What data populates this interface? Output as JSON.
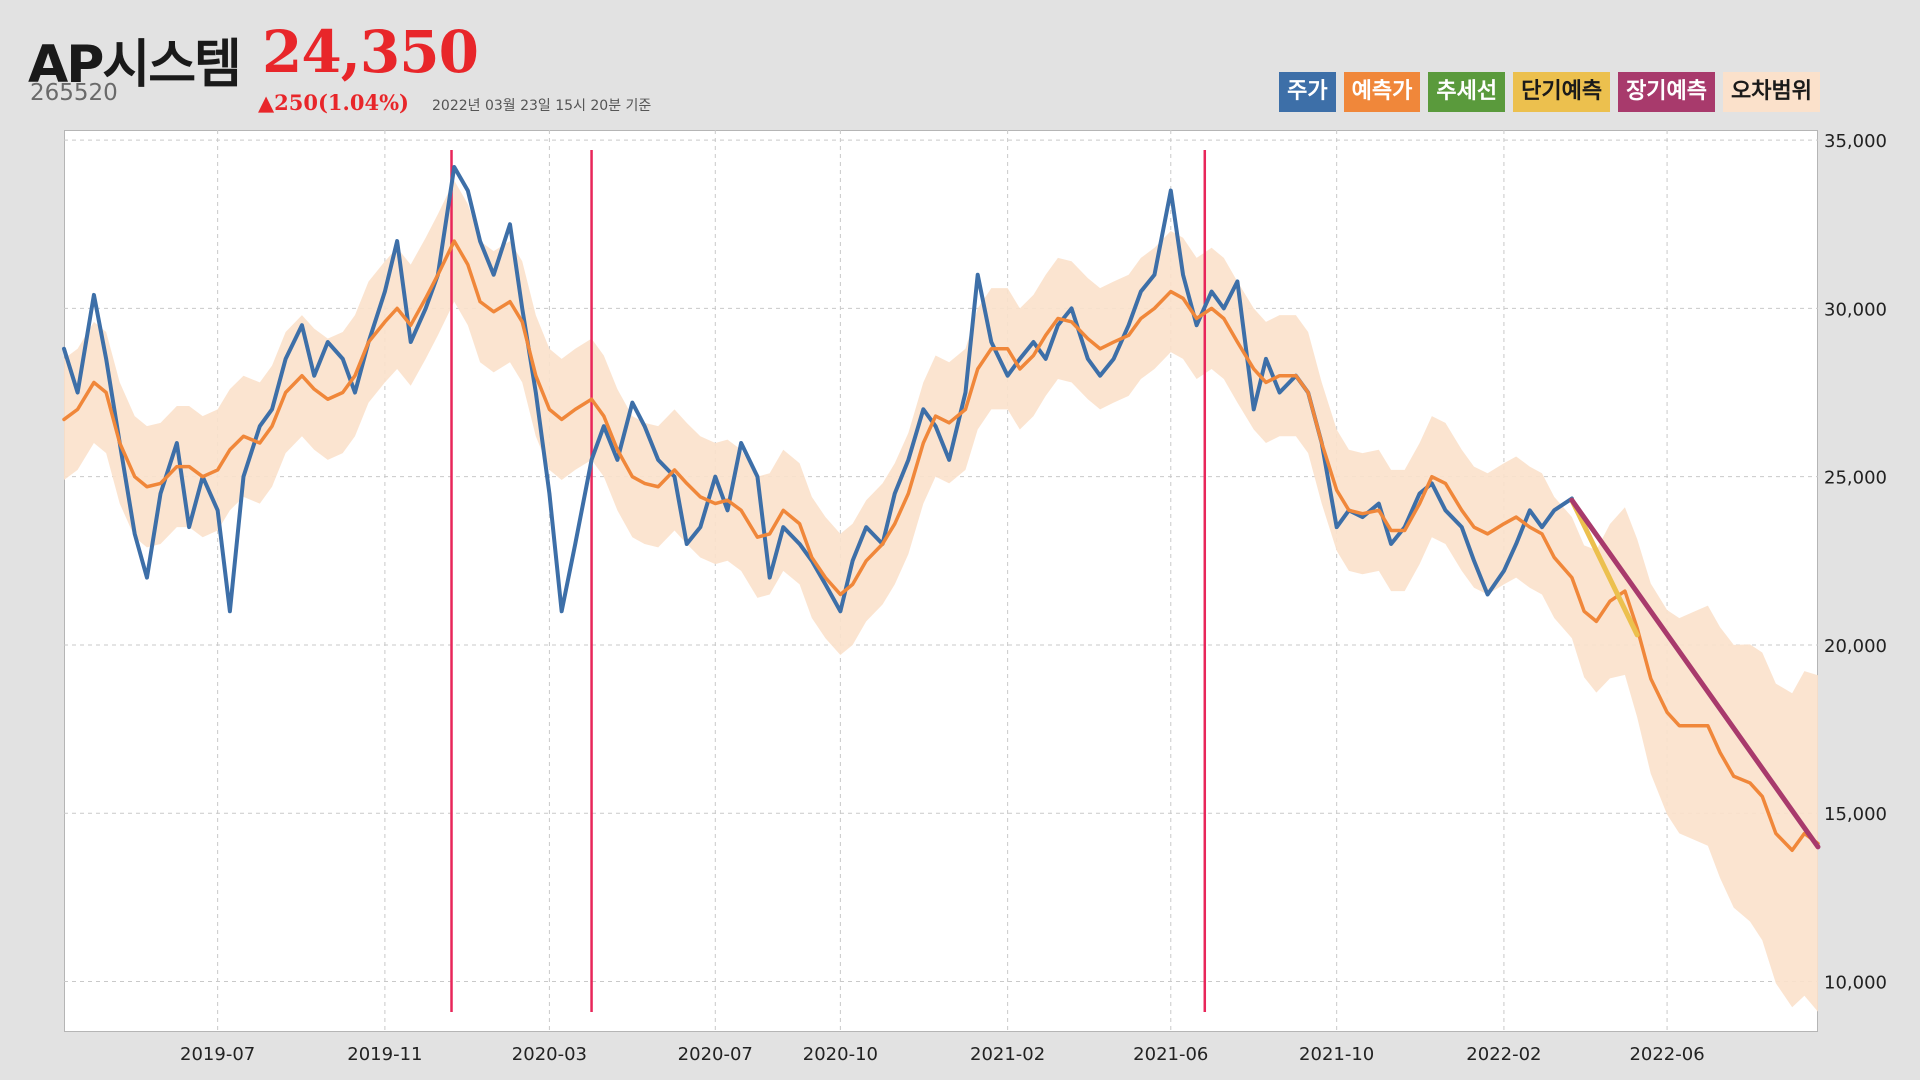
{
  "header": {
    "name": "AP시스템",
    "price": "24,350",
    "code": "265520",
    "change": "▲250(1.04%)",
    "timestamp": "2022년 03월 23일 15시 20분 기준"
  },
  "legend": [
    {
      "label": "주가",
      "color": "#3d6fa8",
      "text_color": "#ffffff"
    },
    {
      "label": "예측가",
      "color": "#f0873a",
      "text_color": "#ffffff"
    },
    {
      "label": "추세선",
      "color": "#5a9a3c",
      "text_color": "#ffffff"
    },
    {
      "label": "단기예측",
      "color": "#ecc04e",
      "text_color": "#1a1a1a"
    },
    {
      "label": "장기예측",
      "color": "#a83a6c",
      "text_color": "#ffffff"
    },
    {
      "label": "오차범위",
      "color": "#fbe1cb",
      "text_color": "#1a1a1a"
    }
  ],
  "chart_data": {
    "type": "line",
    "x_ticks": [
      "2019-07",
      "2019-11",
      "2020-03",
      "2020-07",
      "2020-10",
      "2021-02",
      "2021-06",
      "2021-10",
      "2022-02",
      "2022-06"
    ],
    "x_range": [
      "2019-03-10",
      "2022-09-20"
    ],
    "y_ticks": [
      "10,000",
      "15,000",
      "20,000",
      "25,000",
      "30,000",
      "35,000"
    ],
    "ylim": [
      8500,
      35300
    ],
    "grid": true,
    "y_axis_side": "right",
    "vertical_markers": [
      "2019-12-20",
      "2020-04-01",
      "2021-06-26"
    ],
    "series": [
      {
        "name": "주가",
        "color": "#3d6fa8",
        "points": [
          [
            "2019-03-10",
            28800
          ],
          [
            "2019-03-20",
            27500
          ],
          [
            "2019-04-01",
            30400
          ],
          [
            "2019-04-10",
            28500
          ],
          [
            "2019-04-20",
            26000
          ],
          [
            "2019-05-01",
            23300
          ],
          [
            "2019-05-10",
            22000
          ],
          [
            "2019-05-20",
            24500
          ],
          [
            "2019-06-01",
            26000
          ],
          [
            "2019-06-10",
            23500
          ],
          [
            "2019-06-20",
            25000
          ],
          [
            "2019-07-01",
            24000
          ],
          [
            "2019-07-10",
            21000
          ],
          [
            "2019-07-20",
            25000
          ],
          [
            "2019-08-01",
            26500
          ],
          [
            "2019-08-10",
            27000
          ],
          [
            "2019-08-20",
            28500
          ],
          [
            "2019-09-01",
            29500
          ],
          [
            "2019-09-10",
            28000
          ],
          [
            "2019-09-20",
            29000
          ],
          [
            "2019-10-01",
            28500
          ],
          [
            "2019-10-10",
            27500
          ],
          [
            "2019-10-20",
            29000
          ],
          [
            "2019-11-01",
            30500
          ],
          [
            "2019-11-10",
            32000
          ],
          [
            "2019-11-20",
            29000
          ],
          [
            "2019-12-01",
            30000
          ],
          [
            "2019-12-10",
            31000
          ],
          [
            "2019-12-22",
            34200
          ],
          [
            "2020-01-01",
            33500
          ],
          [
            "2020-01-10",
            32000
          ],
          [
            "2020-01-20",
            31000
          ],
          [
            "2020-02-01",
            32500
          ],
          [
            "2020-02-10",
            30000
          ],
          [
            "2020-02-20",
            27500
          ],
          [
            "2020-03-01",
            24500
          ],
          [
            "2020-03-10",
            21000
          ],
          [
            "2020-03-20",
            23000
          ],
          [
            "2020-04-01",
            25500
          ],
          [
            "2020-04-10",
            26500
          ],
          [
            "2020-04-20",
            25500
          ],
          [
            "2020-05-01",
            27200
          ],
          [
            "2020-05-10",
            26500
          ],
          [
            "2020-05-20",
            25500
          ],
          [
            "2020-06-01",
            25000
          ],
          [
            "2020-06-10",
            23000
          ],
          [
            "2020-06-20",
            23500
          ],
          [
            "2020-07-01",
            25000
          ],
          [
            "2020-07-10",
            24000
          ],
          [
            "2020-07-20",
            26000
          ],
          [
            "2020-08-01",
            25000
          ],
          [
            "2020-08-10",
            22000
          ],
          [
            "2020-08-20",
            23500
          ],
          [
            "2020-09-01",
            23000
          ],
          [
            "2020-09-10",
            22500
          ],
          [
            "2020-09-20",
            21800
          ],
          [
            "2020-10-01",
            21000
          ],
          [
            "2020-10-10",
            22500
          ],
          [
            "2020-10-20",
            23500
          ],
          [
            "2020-11-01",
            23000
          ],
          [
            "2020-11-10",
            24500
          ],
          [
            "2020-11-20",
            25500
          ],
          [
            "2020-12-01",
            27000
          ],
          [
            "2020-12-10",
            26500
          ],
          [
            "2020-12-20",
            25500
          ],
          [
            "2021-01-01",
            27500
          ],
          [
            "2021-01-10",
            31000
          ],
          [
            "2021-01-20",
            29000
          ],
          [
            "2021-02-01",
            28000
          ],
          [
            "2021-02-10",
            28500
          ],
          [
            "2021-02-20",
            29000
          ],
          [
            "2021-03-01",
            28500
          ],
          [
            "2021-03-10",
            29500
          ],
          [
            "2021-03-20",
            30000
          ],
          [
            "2021-04-01",
            28500
          ],
          [
            "2021-04-10",
            28000
          ],
          [
            "2021-04-20",
            28500
          ],
          [
            "2021-05-01",
            29500
          ],
          [
            "2021-05-10",
            30500
          ],
          [
            "2021-05-20",
            31000
          ],
          [
            "2021-06-01",
            33500
          ],
          [
            "2021-06-10",
            31000
          ],
          [
            "2021-06-20",
            29500
          ],
          [
            "2021-07-01",
            30500
          ],
          [
            "2021-07-10",
            30000
          ],
          [
            "2021-07-20",
            30800
          ],
          [
            "2021-08-01",
            27000
          ],
          [
            "2021-08-10",
            28500
          ],
          [
            "2021-08-20",
            27500
          ],
          [
            "2021-09-01",
            28000
          ],
          [
            "2021-09-10",
            27500
          ],
          [
            "2021-09-20",
            26000
          ],
          [
            "2021-10-01",
            23500
          ],
          [
            "2021-10-10",
            24000
          ],
          [
            "2021-10-20",
            23800
          ],
          [
            "2021-11-01",
            24200
          ],
          [
            "2021-11-10",
            23000
          ],
          [
            "2021-11-20",
            23500
          ],
          [
            "2021-12-01",
            24500
          ],
          [
            "2021-12-10",
            24800
          ],
          [
            "2021-12-20",
            24000
          ],
          [
            "2022-01-01",
            23500
          ],
          [
            "2022-01-10",
            22500
          ],
          [
            "2022-01-20",
            21500
          ],
          [
            "2022-02-01",
            22200
          ],
          [
            "2022-02-10",
            23000
          ],
          [
            "2022-02-20",
            24000
          ],
          [
            "2022-03-01",
            23500
          ],
          [
            "2022-03-10",
            24000
          ],
          [
            "2022-03-23",
            24350
          ]
        ]
      },
      {
        "name": "예측가",
        "color": "#f0873a",
        "points": [
          [
            "2019-03-10",
            26700
          ],
          [
            "2019-03-20",
            27000
          ],
          [
            "2019-04-01",
            27800
          ],
          [
            "2019-04-10",
            27500
          ],
          [
            "2019-04-20",
            26000
          ],
          [
            "2019-05-01",
            25000
          ],
          [
            "2019-05-10",
            24700
          ],
          [
            "2019-05-20",
            24800
          ],
          [
            "2019-06-01",
            25300
          ],
          [
            "2019-06-10",
            25300
          ],
          [
            "2019-06-20",
            25000
          ],
          [
            "2019-07-01",
            25200
          ],
          [
            "2019-07-10",
            25800
          ],
          [
            "2019-07-20",
            26200
          ],
          [
            "2019-08-01",
            26000
          ],
          [
            "2019-08-10",
            26500
          ],
          [
            "2019-08-20",
            27500
          ],
          [
            "2019-09-01",
            28000
          ],
          [
            "2019-09-10",
            27600
          ],
          [
            "2019-09-20",
            27300
          ],
          [
            "2019-10-01",
            27500
          ],
          [
            "2019-10-10",
            28000
          ],
          [
            "2019-10-20",
            29000
          ],
          [
            "2019-11-01",
            29600
          ],
          [
            "2019-11-10",
            30000
          ],
          [
            "2019-11-20",
            29500
          ],
          [
            "2019-12-01",
            30300
          ],
          [
            "2019-12-10",
            31000
          ],
          [
            "2019-12-22",
            32000
          ],
          [
            "2020-01-01",
            31300
          ],
          [
            "2020-01-10",
            30200
          ],
          [
            "2020-01-20",
            29900
          ],
          [
            "2020-02-01",
            30200
          ],
          [
            "2020-02-10",
            29600
          ],
          [
            "2020-02-20",
            28000
          ],
          [
            "2020-03-01",
            27000
          ],
          [
            "2020-03-10",
            26700
          ],
          [
            "2020-03-20",
            27000
          ],
          [
            "2020-04-01",
            27300
          ],
          [
            "2020-04-10",
            26800
          ],
          [
            "2020-04-20",
            25800
          ],
          [
            "2020-05-01",
            25000
          ],
          [
            "2020-05-10",
            24800
          ],
          [
            "2020-05-20",
            24700
          ],
          [
            "2020-06-01",
            25200
          ],
          [
            "2020-06-10",
            24800
          ],
          [
            "2020-06-20",
            24400
          ],
          [
            "2020-07-01",
            24200
          ],
          [
            "2020-07-10",
            24300
          ],
          [
            "2020-07-20",
            24000
          ],
          [
            "2020-08-01",
            23200
          ],
          [
            "2020-08-10",
            23300
          ],
          [
            "2020-08-20",
            24000
          ],
          [
            "2020-09-01",
            23600
          ],
          [
            "2020-09-10",
            22600
          ],
          [
            "2020-09-20",
            22000
          ],
          [
            "2020-10-01",
            21500
          ],
          [
            "2020-10-10",
            21800
          ],
          [
            "2020-10-20",
            22500
          ],
          [
            "2020-11-01",
            23000
          ],
          [
            "2020-11-10",
            23600
          ],
          [
            "2020-11-20",
            24500
          ],
          [
            "2020-12-01",
            26000
          ],
          [
            "2020-12-10",
            26800
          ],
          [
            "2020-12-20",
            26600
          ],
          [
            "2021-01-01",
            27000
          ],
          [
            "2021-01-10",
            28200
          ],
          [
            "2021-01-20",
            28800
          ],
          [
            "2021-02-01",
            28800
          ],
          [
            "2021-02-10",
            28200
          ],
          [
            "2021-02-20",
            28600
          ],
          [
            "2021-03-01",
            29200
          ],
          [
            "2021-03-10",
            29700
          ],
          [
            "2021-03-20",
            29600
          ],
          [
            "2021-04-01",
            29100
          ],
          [
            "2021-04-10",
            28800
          ],
          [
            "2021-04-20",
            29000
          ],
          [
            "2021-05-01",
            29200
          ],
          [
            "2021-05-10",
            29700
          ],
          [
            "2021-05-20",
            30000
          ],
          [
            "2021-06-01",
            30500
          ],
          [
            "2021-06-10",
            30300
          ],
          [
            "2021-06-20",
            29700
          ],
          [
            "2021-07-01",
            30000
          ],
          [
            "2021-07-10",
            29700
          ],
          [
            "2021-07-20",
            29000
          ],
          [
            "2021-08-01",
            28200
          ],
          [
            "2021-08-10",
            27800
          ],
          [
            "2021-08-20",
            28000
          ],
          [
            "2021-09-01",
            28000
          ],
          [
            "2021-09-10",
            27500
          ],
          [
            "2021-09-20",
            26000
          ],
          [
            "2021-10-01",
            24600
          ],
          [
            "2021-10-10",
            24000
          ],
          [
            "2021-10-20",
            23900
          ],
          [
            "2021-11-01",
            24000
          ],
          [
            "2021-11-10",
            23400
          ],
          [
            "2021-11-20",
            23400
          ],
          [
            "2021-12-01",
            24200
          ],
          [
            "2021-12-10",
            25000
          ],
          [
            "2021-12-20",
            24800
          ],
          [
            "2022-01-01",
            24000
          ],
          [
            "2022-01-10",
            23500
          ],
          [
            "2022-01-20",
            23300
          ],
          [
            "2022-02-01",
            23600
          ],
          [
            "2022-02-10",
            23800
          ],
          [
            "2022-02-20",
            23500
          ],
          [
            "2022-03-01",
            23300
          ],
          [
            "2022-03-10",
            22600
          ],
          [
            "2022-03-23",
            22000
          ],
          [
            "2022-04-01",
            21000
          ],
          [
            "2022-04-10",
            20700
          ],
          [
            "2022-04-20",
            21300
          ],
          [
            "2022-05-01",
            21600
          ],
          [
            "2022-05-10",
            20500
          ],
          [
            "2022-05-20",
            19000
          ],
          [
            "2022-06-01",
            18000
          ],
          [
            "2022-06-10",
            17600
          ],
          [
            "2022-06-20",
            17600
          ],
          [
            "2022-07-01",
            17600
          ],
          [
            "2022-07-10",
            16800
          ],
          [
            "2022-07-20",
            16100
          ],
          [
            "2022-08-01",
            15900
          ],
          [
            "2022-08-10",
            15500
          ],
          [
            "2022-08-20",
            14400
          ],
          [
            "2022-09-01",
            13900
          ],
          [
            "2022-09-10",
            14400
          ],
          [
            "2022-09-20",
            14100
          ]
        ]
      },
      {
        "name": "단기예측",
        "color": "#ecc04e",
        "points": [
          [
            "2022-03-23",
            24300
          ],
          [
            "2022-05-10",
            20300
          ]
        ]
      },
      {
        "name": "장기예측",
        "color": "#a83a6c",
        "points": [
          [
            "2022-03-23",
            24300
          ],
          [
            "2022-09-20",
            14000
          ]
        ]
      }
    ],
    "error_band": {
      "name": "오차범위",
      "color": "#fbe1cb",
      "upper_offset": 1800,
      "lower_offset": 1800,
      "forecast_widening_to": 5000
    }
  }
}
